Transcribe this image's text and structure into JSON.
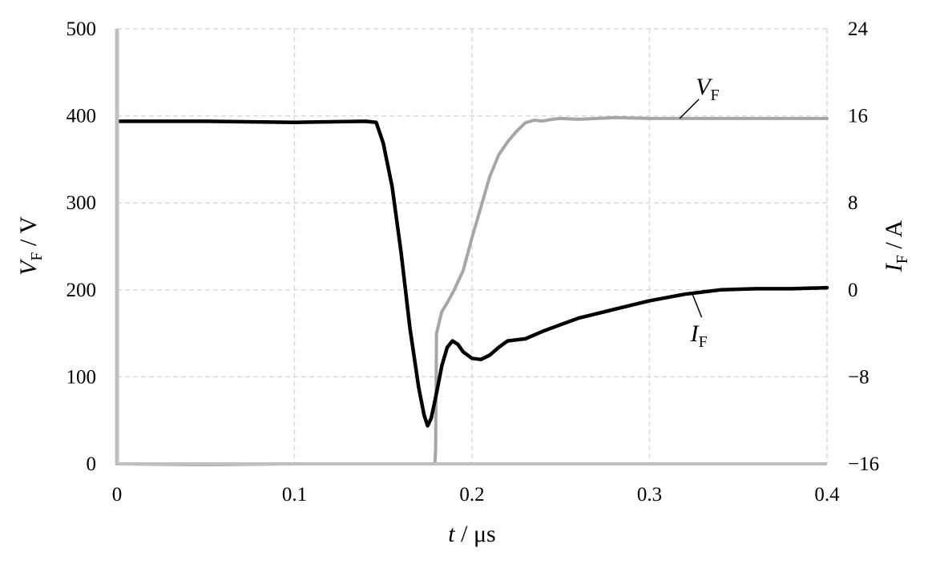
{
  "chart_data": {
    "type": "line",
    "x": {
      "label_var": "t",
      "label_sep": " / ",
      "label_unit": "μs",
      "range": [
        0,
        0.4
      ],
      "ticks": [
        0,
        0.1,
        0.2,
        0.3,
        0.4
      ],
      "tick_labels": [
        "0",
        "0.1",
        "0.2",
        "0.3",
        "0.4"
      ]
    },
    "y_left": {
      "label_var": "V",
      "label_sub": "F",
      "label_sep": " / ",
      "label_unit": "V",
      "range": [
        0,
        500
      ],
      "ticks": [
        0,
        100,
        200,
        300,
        400,
        500
      ],
      "tick_labels": [
        "0",
        "100",
        "200",
        "300",
        "400",
        "500"
      ]
    },
    "y_right": {
      "label_var": "I",
      "label_sub": "F",
      "label_sep": " / ",
      "label_unit": "A",
      "range": [
        -16,
        24
      ],
      "ticks": [
        -16,
        -8,
        0,
        8,
        16,
        24
      ],
      "tick_labels": [
        "−16",
        "−8",
        "0",
        "8",
        "16",
        "24"
      ]
    },
    "grid": true,
    "series": [
      {
        "name_var": "V",
        "name_sub": "F",
        "axis": "left",
        "color": "#a6a6a6",
        "points": [
          [
            0,
            0
          ],
          [
            0.05,
            -1
          ],
          [
            0.1,
            0
          ],
          [
            0.15,
            0
          ],
          [
            0.17,
            0
          ],
          [
            0.179,
            0
          ],
          [
            0.1795,
            15
          ],
          [
            0.18,
            150
          ],
          [
            0.183,
            175
          ],
          [
            0.186,
            185
          ],
          [
            0.19,
            200
          ],
          [
            0.195,
            222
          ],
          [
            0.2,
            260
          ],
          [
            0.205,
            295
          ],
          [
            0.21,
            330
          ],
          [
            0.215,
            355
          ],
          [
            0.22,
            370
          ],
          [
            0.225,
            382
          ],
          [
            0.23,
            392
          ],
          [
            0.235,
            395
          ],
          [
            0.24,
            394
          ],
          [
            0.245,
            396
          ],
          [
            0.25,
            397
          ],
          [
            0.26,
            396
          ],
          [
            0.27,
            397
          ],
          [
            0.28,
            398
          ],
          [
            0.3,
            397
          ],
          [
            0.32,
            397
          ],
          [
            0.35,
            397
          ],
          [
            0.38,
            397
          ],
          [
            0.4,
            397
          ]
        ]
      },
      {
        "name_var": "I",
        "name_sub": "F",
        "axis": "right",
        "color": "#000000",
        "points": [
          [
            0,
            15.5
          ],
          [
            0.05,
            15.5
          ],
          [
            0.1,
            15.4
          ],
          [
            0.14,
            15.5
          ],
          [
            0.146,
            15.4
          ],
          [
            0.15,
            13.5
          ],
          [
            0.155,
            9.5
          ],
          [
            0.16,
            3.5
          ],
          [
            0.165,
            -3.5
          ],
          [
            0.17,
            -9
          ],
          [
            0.173,
            -11.5
          ],
          [
            0.175,
            -12.5
          ],
          [
            0.177,
            -11.8
          ],
          [
            0.18,
            -9.5
          ],
          [
            0.183,
            -7
          ],
          [
            0.186,
            -5.3
          ],
          [
            0.189,
            -4.7
          ],
          [
            0.192,
            -5.0
          ],
          [
            0.195,
            -5.7
          ],
          [
            0.2,
            -6.3
          ],
          [
            0.205,
            -6.4
          ],
          [
            0.21,
            -6.0
          ],
          [
            0.215,
            -5.3
          ],
          [
            0.22,
            -4.7
          ],
          [
            0.23,
            -4.5
          ],
          [
            0.24,
            -3.8
          ],
          [
            0.25,
            -3.2
          ],
          [
            0.26,
            -2.6
          ],
          [
            0.27,
            -2.2
          ],
          [
            0.28,
            -1.8
          ],
          [
            0.29,
            -1.4
          ],
          [
            0.3,
            -1.0
          ],
          [
            0.31,
            -0.7
          ],
          [
            0.32,
            -0.4
          ],
          [
            0.33,
            -0.2
          ],
          [
            0.34,
            0.0
          ],
          [
            0.36,
            0.1
          ],
          [
            0.38,
            0.1
          ],
          [
            0.4,
            0.2
          ]
        ]
      }
    ],
    "annotations": [
      {
        "var": "V",
        "sub": "F",
        "series": 0,
        "at_x": 0.317
      },
      {
        "var": "I",
        "sub": "F",
        "series": 1,
        "at_x": 0.324
      }
    ]
  }
}
